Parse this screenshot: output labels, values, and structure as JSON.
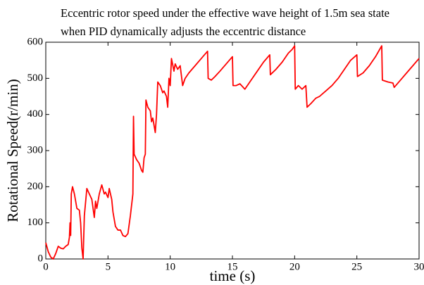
{
  "chart_data": {
    "type": "line",
    "title": "Eccentric rotor speed under the effective wave height of 1.5m sea state when PID dynamically adjusts the eccentric distance",
    "x_label": "time (s)",
    "y_label": "Rotational Speed(r/min)",
    "color": "#ff0000",
    "x": [
      0,
      0.2,
      0.4,
      0.6,
      0.8,
      1.0,
      1.2,
      1.4,
      1.6,
      1.8,
      1.9,
      1.95,
      2.0,
      2.05,
      2.15,
      2.3,
      2.5,
      2.7,
      2.8,
      2.9,
      3.0,
      3.1,
      3.3,
      3.5,
      3.7,
      3.9,
      4.0,
      4.1,
      4.3,
      4.5,
      4.7,
      4.8,
      5.0,
      5.1,
      5.3,
      5.4,
      5.6,
      5.8,
      6.0,
      6.2,
      6.4,
      6.6,
      6.8,
      7.0,
      7.05,
      7.1,
      7.3,
      7.5,
      7.7,
      7.8,
      7.9,
      8.0,
      8.05,
      8.2,
      8.4,
      8.5,
      8.6,
      8.7,
      8.8,
      8.9,
      9.0,
      9.2,
      9.4,
      9.5,
      9.7,
      9.8,
      9.9,
      10.0,
      10.1,
      10.3,
      10.4,
      10.6,
      10.8,
      11.0,
      11.2,
      11.5,
      12.0,
      12.5,
      13.0,
      13.05,
      13.3,
      13.6,
      14.0,
      14.5,
      15.0,
      15.05,
      15.3,
      15.6,
      16.0,
      16.5,
      17.0,
      17.5,
      18.0,
      18.05,
      18.5,
      19.0,
      19.5,
      19.8,
      20.0,
      20.05,
      20.3,
      20.6,
      20.9,
      21.0,
      21.3,
      21.7,
      22.0,
      22.5,
      23.0,
      23.5,
      24.0,
      24.5,
      25.0,
      25.05,
      25.5,
      26.0,
      26.5,
      27.0,
      27.05,
      27.5,
      27.9,
      28.0,
      28.5,
      29.0,
      29.5,
      30.0
    ],
    "values": [
      45,
      20,
      5,
      0,
      15,
      35,
      30,
      28,
      35,
      40,
      60,
      100,
      65,
      180,
      200,
      180,
      140,
      135,
      100,
      30,
      0,
      120,
      195,
      180,
      165,
      115,
      160,
      140,
      180,
      205,
      180,
      185,
      170,
      195,
      165,
      130,
      90,
      80,
      80,
      65,
      62,
      70,
      120,
      180,
      395,
      290,
      275,
      265,
      245,
      240,
      280,
      290,
      440,
      420,
      410,
      380,
      390,
      370,
      350,
      400,
      490,
      480,
      460,
      465,
      450,
      420,
      500,
      480,
      555,
      520,
      540,
      525,
      535,
      480,
      500,
      515,
      535,
      555,
      575,
      500,
      495,
      505,
      520,
      540,
      560,
      480,
      480,
      485,
      470,
      495,
      520,
      545,
      565,
      510,
      525,
      545,
      570,
      580,
      590,
      470,
      480,
      470,
      480,
      420,
      430,
      445,
      450,
      465,
      480,
      500,
      525,
      550,
      565,
      505,
      515,
      535,
      560,
      590,
      495,
      490,
      487,
      475,
      495,
      515,
      535,
      555
    ],
    "xlim": [
      0,
      30
    ],
    "ylim": [
      0,
      600
    ],
    "xticks": [
      0,
      5,
      10,
      15,
      20,
      25,
      30
    ],
    "yticks": [
      0,
      100,
      200,
      300,
      400,
      500,
      600
    ],
    "grid": false
  }
}
